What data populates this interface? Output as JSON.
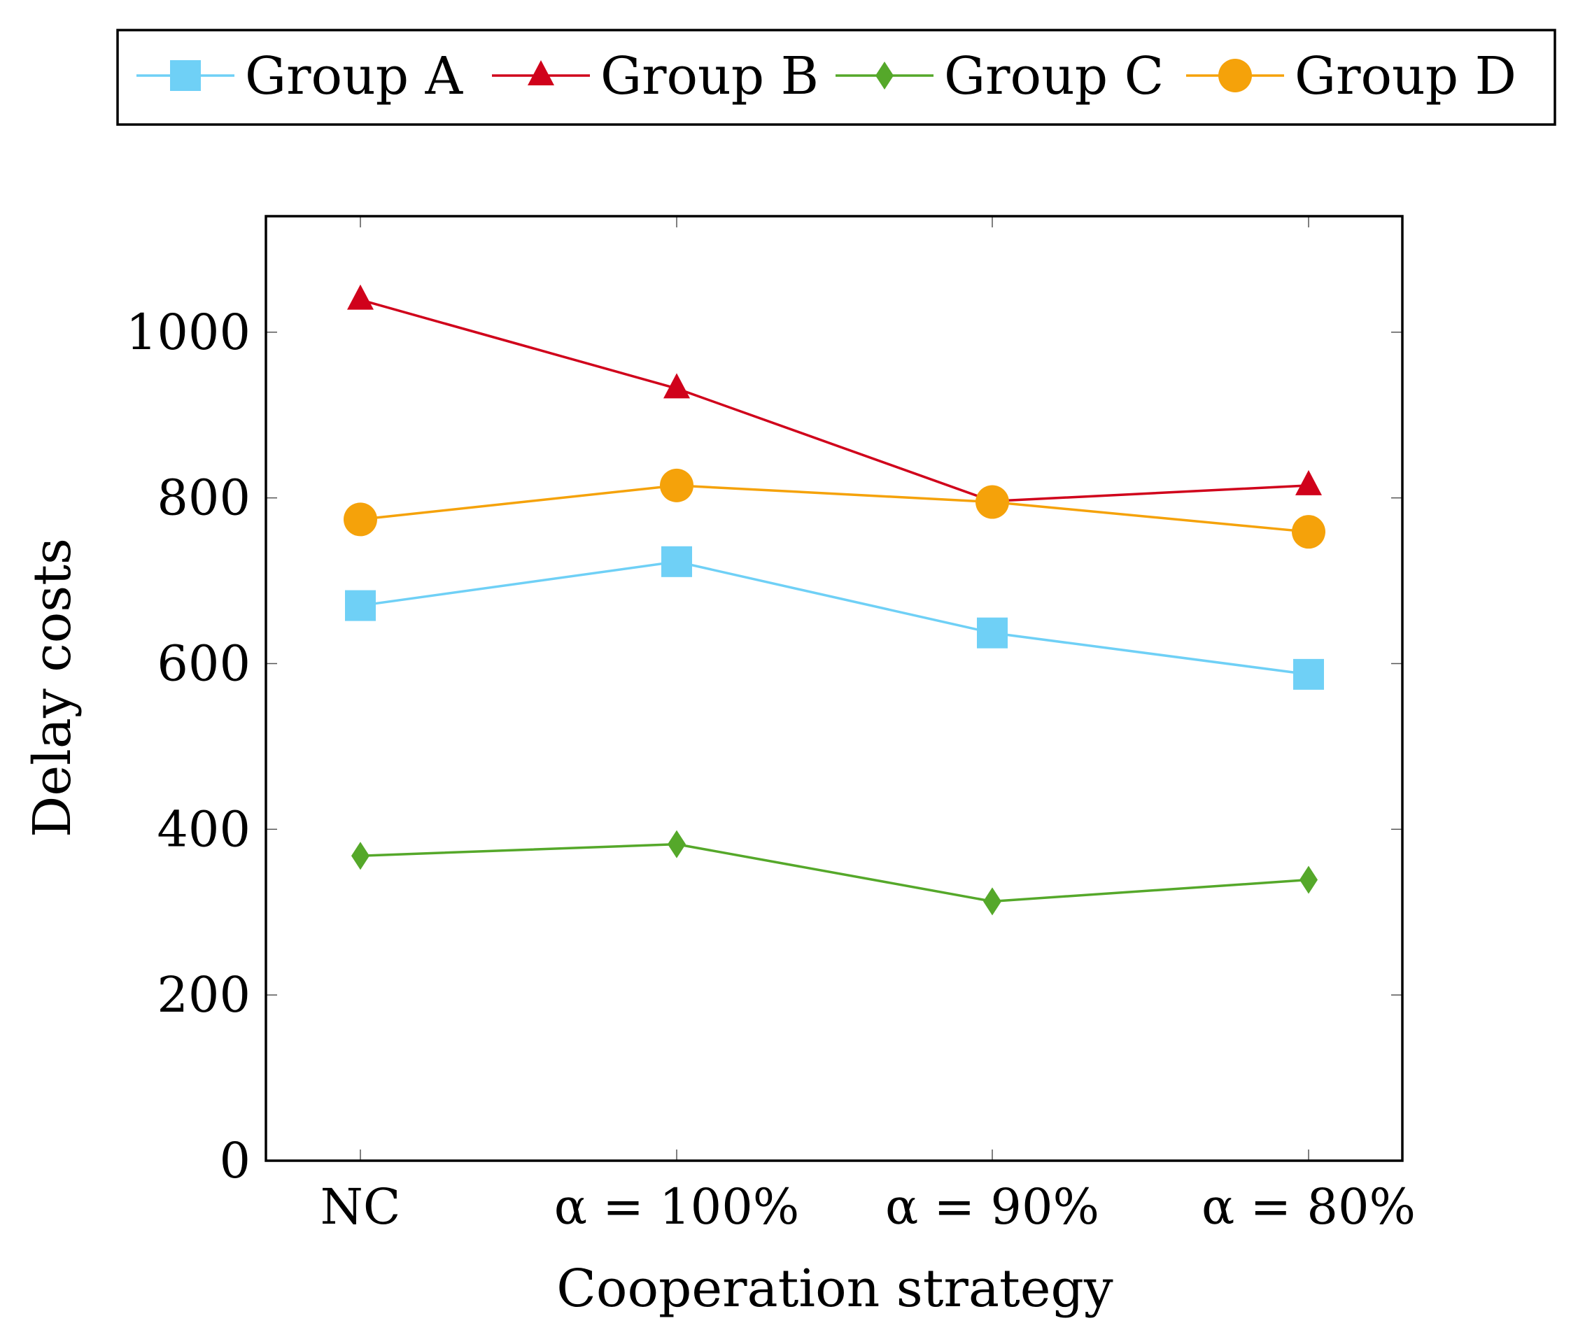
{
  "chart_data": {
    "type": "line",
    "title": "",
    "xlabel": "Cooperation strategy",
    "ylabel": "Delay costs",
    "categories": [
      "NC",
      "α = 100%",
      "α = 90%",
      "α = 80%"
    ],
    "ylim": [
      0,
      1140
    ],
    "yticks": [
      0,
      200,
      400,
      600,
      800,
      1000
    ],
    "grid": false,
    "legend_position": "top",
    "series": [
      {
        "name": "Group A",
        "color": "#6fd0f6",
        "marker": "square",
        "values": [
          670,
          723,
          637,
          587
        ]
      },
      {
        "name": "Group B",
        "color": "#d0021b",
        "marker": "triangle",
        "values": [
          1039,
          932,
          796,
          815
        ]
      },
      {
        "name": "Group C",
        "color": "#55a82a",
        "marker": "diamond",
        "values": [
          368,
          382,
          313,
          339
        ]
      },
      {
        "name": "Group D",
        "color": "#f5a20a",
        "marker": "circle",
        "values": [
          774,
          815,
          795,
          759
        ]
      }
    ]
  }
}
